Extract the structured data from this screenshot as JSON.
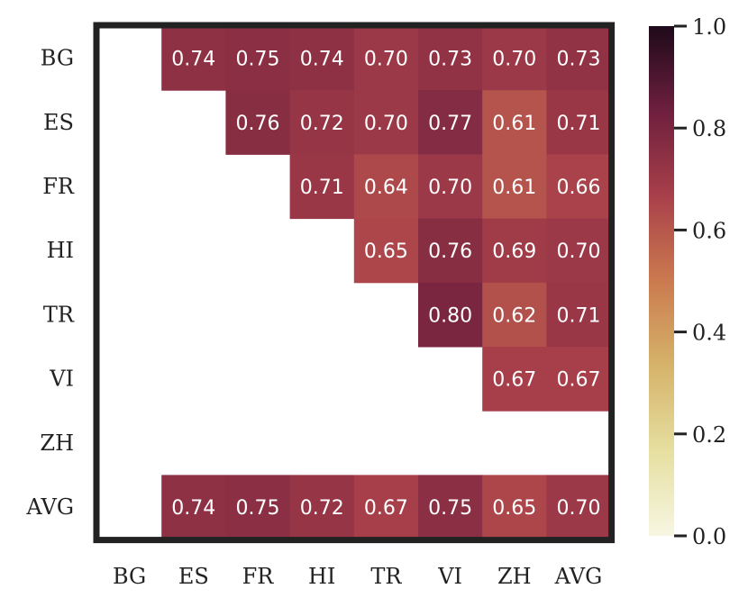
{
  "chart_data": {
    "type": "heatmap",
    "title": "",
    "xlabel": "",
    "ylabel": "",
    "x_categories": [
      "BG",
      "ES",
      "FR",
      "HI",
      "TR",
      "VI",
      "ZH",
      "AVG"
    ],
    "y_categories": [
      "BG",
      "ES",
      "FR",
      "HI",
      "TR",
      "VI",
      "ZH",
      "AVG"
    ],
    "values": [
      [
        null,
        0.74,
        0.75,
        0.74,
        0.7,
        0.73,
        0.7,
        0.73
      ],
      [
        null,
        null,
        0.76,
        0.72,
        0.7,
        0.77,
        0.61,
        0.71
      ],
      [
        null,
        null,
        null,
        0.71,
        0.64,
        0.7,
        0.61,
        0.66
      ],
      [
        null,
        null,
        null,
        null,
        0.65,
        0.76,
        0.69,
        0.7
      ],
      [
        null,
        null,
        null,
        null,
        null,
        0.8,
        0.62,
        0.71
      ],
      [
        null,
        null,
        null,
        null,
        null,
        null,
        0.67,
        0.67
      ],
      [
        null,
        null,
        null,
        null,
        null,
        null,
        null,
        null
      ],
      [
        null,
        0.74,
        0.75,
        0.72,
        0.67,
        0.75,
        0.65,
        0.7
      ]
    ],
    "value_labels": [
      [
        "",
        "0.74",
        "0.75",
        "0.74",
        "0.70",
        "0.73",
        "0.70",
        "0.73"
      ],
      [
        "",
        "",
        "0.76",
        "0.72",
        "0.70",
        "0.77",
        "0.61",
        "0.71"
      ],
      [
        "",
        "",
        "",
        "0.71",
        "0.64",
        "0.70",
        "0.61",
        "0.66"
      ],
      [
        "",
        "",
        "",
        "",
        "0.65",
        "0.76",
        "0.69",
        "0.70"
      ],
      [
        "",
        "",
        "",
        "",
        "",
        "0.80",
        "0.62",
        "0.71"
      ],
      [
        "",
        "",
        "",
        "",
        "",
        "",
        "0.67",
        "0.67"
      ],
      [
        "",
        "",
        "",
        "",
        "",
        "",
        "",
        ""
      ],
      [
        "",
        "0.74",
        "0.75",
        "0.72",
        "0.67",
        "0.75",
        "0.65",
        "0.70"
      ]
    ],
    "colorbar": {
      "range": [
        0.0,
        1.0
      ],
      "ticks": [
        0.0,
        0.2,
        0.4,
        0.6,
        0.8,
        1.0
      ],
      "tick_labels": [
        "0.0",
        "0.2",
        "0.4",
        "0.6",
        "0.8",
        "1.0"
      ],
      "colormap_stops": [
        "#f7f6e2",
        "#e6dfa0",
        "#d6b36a",
        "#cb7a4f",
        "#a8404a",
        "#6e1f3e",
        "#1e0a1a"
      ]
    },
    "grid": false,
    "legend": "colorbar-right"
  }
}
